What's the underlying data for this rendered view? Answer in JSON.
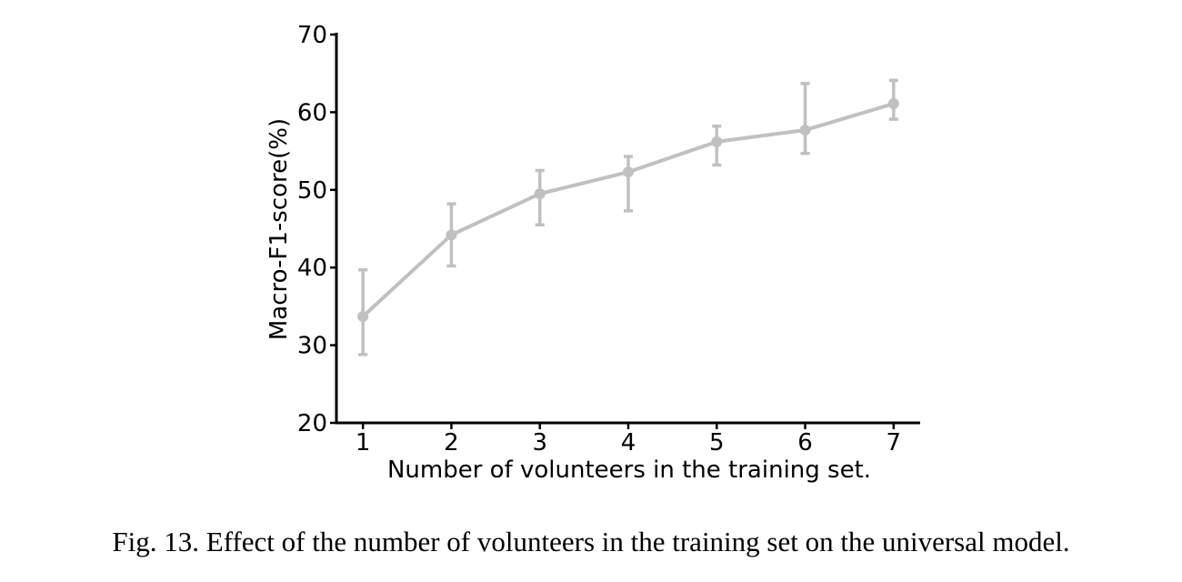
{
  "caption": "Fig. 13.  Effect of the number of volunteers in the training set on the universal model.",
  "chart_data": {
    "type": "line",
    "title": "",
    "xlabel": "Number of volunteers in the training set.",
    "ylabel": "Macro-F1-score(%)",
    "x": [
      1,
      2,
      3,
      4,
      5,
      6,
      7
    ],
    "series": [
      {
        "values": [
          33.7,
          44.2,
          49.5,
          52.3,
          56.2,
          57.7,
          61.1
        ],
        "error_low": [
          28.8,
          40.2,
          45.5,
          47.3,
          53.2,
          54.7,
          59.1
        ],
        "error_high": [
          39.7,
          48.2,
          52.5,
          54.3,
          58.2,
          63.7,
          64.1
        ],
        "color": "#c0c0c0"
      }
    ],
    "xticks": [
      "1",
      "2",
      "3",
      "4",
      "5",
      "6",
      "7"
    ],
    "yticks": [
      "20",
      "30",
      "40",
      "50",
      "60",
      "70"
    ],
    "xlim": [
      0.7,
      7.3
    ],
    "ylim": [
      20,
      70
    ],
    "grid": false,
    "axis_color": "#000000"
  }
}
